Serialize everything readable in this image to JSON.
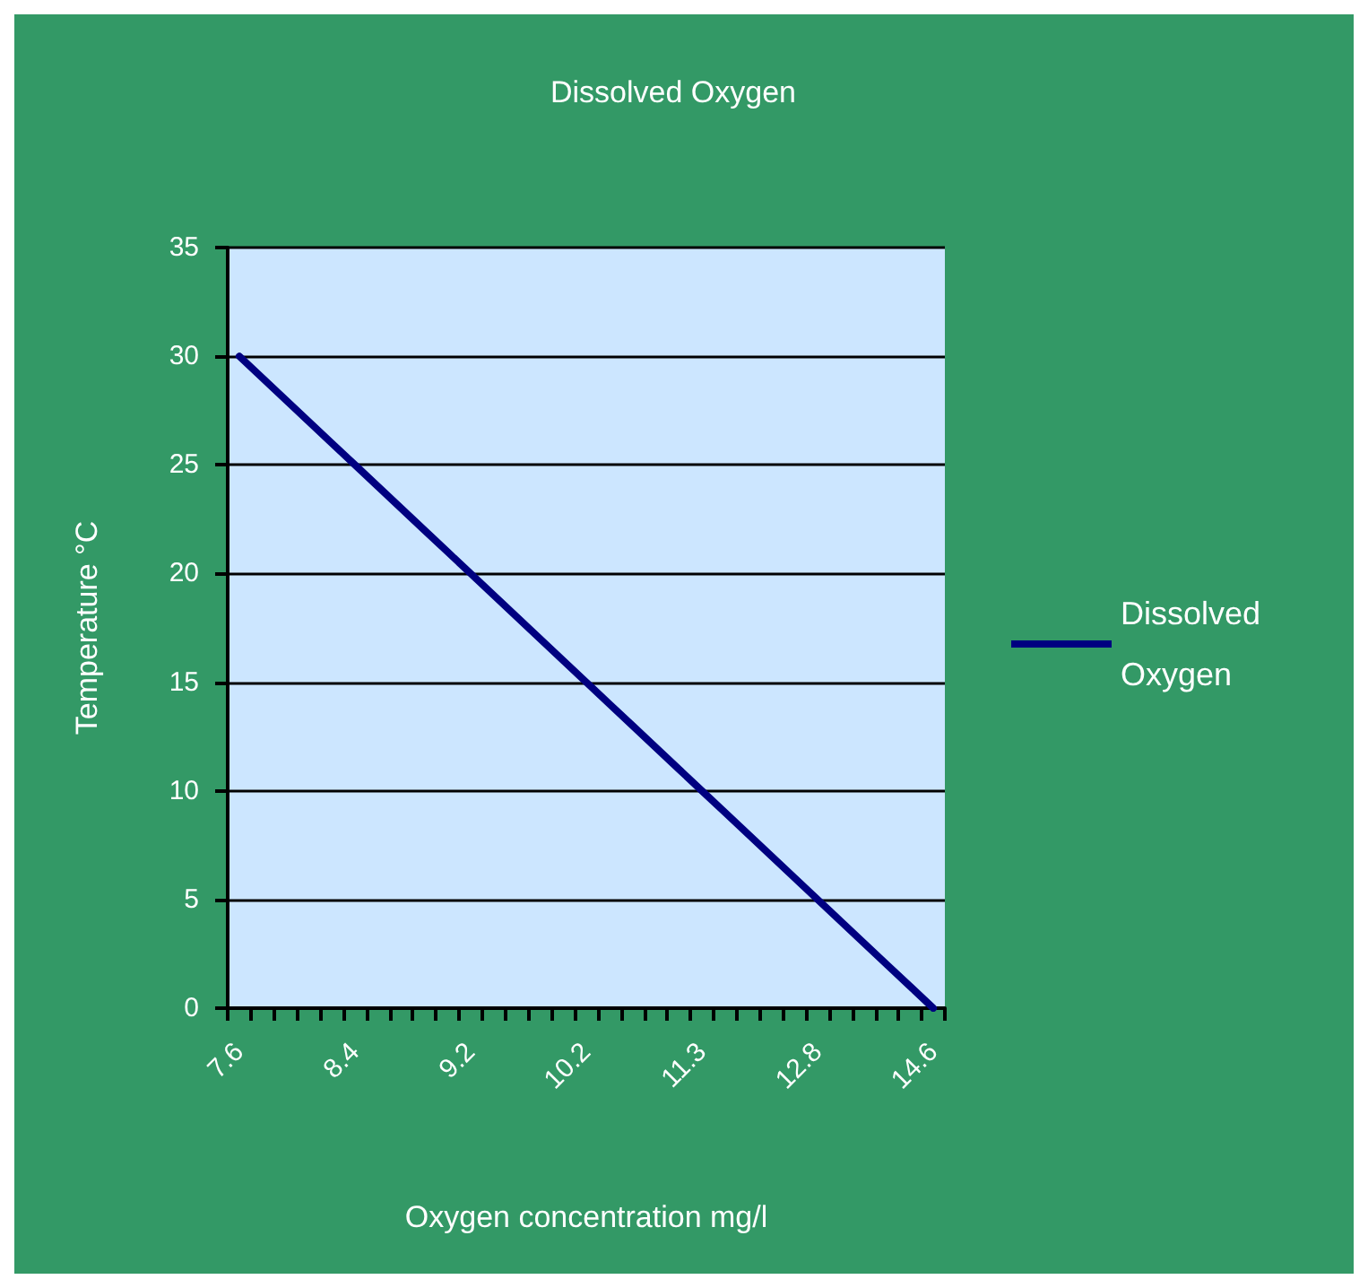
{
  "chart_data": {
    "type": "line",
    "title": "Dissolved Oxygen",
    "xlabel": "Oxygen concentration mg/l",
    "ylabel": "Temperature °C",
    "categories": [
      "7.6",
      null,
      null,
      null,
      null,
      "8.4",
      null,
      null,
      null,
      null,
      "9.2",
      null,
      null,
      null,
      null,
      "10.2",
      null,
      null,
      null,
      null,
      "11.3",
      null,
      null,
      null,
      null,
      "12.8",
      null,
      null,
      null,
      null,
      "14.6"
    ],
    "series": [
      {
        "name": "Dissolved Oxygen",
        "color": "#000080",
        "values": [
          30,
          29,
          28,
          27,
          26,
          25,
          24,
          23,
          22,
          21,
          20,
          19,
          18,
          17,
          16,
          15,
          14,
          13,
          12,
          11,
          10,
          9,
          8,
          7,
          6,
          5,
          4,
          3,
          2,
          1,
          0
        ]
      }
    ],
    "ylim": [
      0,
      35
    ],
    "yticks": [
      0,
      5,
      10,
      15,
      20,
      25,
      30,
      35
    ],
    "grid": "y",
    "legend": "right",
    "marker": "none",
    "line_style": "solid"
  }
}
